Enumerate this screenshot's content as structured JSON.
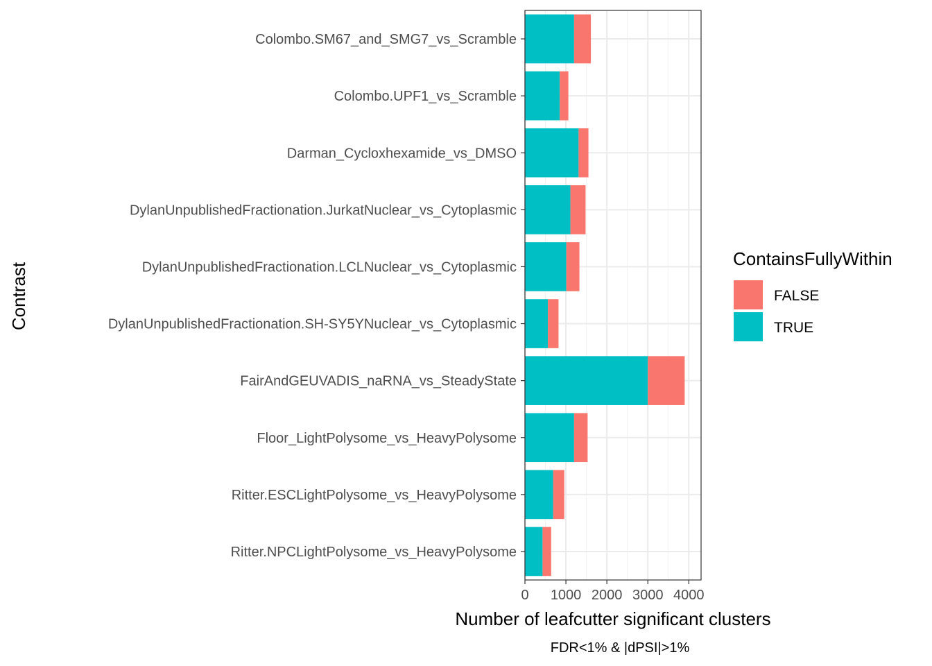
{
  "chart_data": {
    "type": "bar",
    "orientation": "horizontal",
    "stacked": true,
    "categories": [
      "Colombo.SM67_and_SMG7_vs_Scramble",
      "Colombo.UPF1_vs_Scramble",
      "Darman_Cycloxhexamide_vs_DMSO",
      "DylanUnpublishedFractionation.JurkatNuclear_vs_Cytoplasmic",
      "DylanUnpublishedFractionation.LCLNuclear_vs_Cytoplasmic",
      "DylanUnpublishedFractionation.SH-SY5YNuclear_vs_Cytoplasmic",
      "FairAndGEUVADIS_naRNA_vs_SteadyState",
      "Floor_LightPolysome_vs_HeavyPolysome",
      "Ritter.ESCLightPolysome_vs_HeavyPolysome",
      "Ritter.NPCLightPolysome_vs_HeavyPolysome"
    ],
    "series": [
      {
        "name": "TRUE",
        "color": "#00BFC4",
        "values": [
          1200,
          850,
          1310,
          1110,
          1010,
          560,
          3000,
          1200,
          690,
          430
        ]
      },
      {
        "name": "FALSE",
        "color": "#F8766D",
        "values": [
          410,
          210,
          240,
          370,
          320,
          260,
          900,
          330,
          270,
          210
        ]
      }
    ],
    "xlabel": "Number of leafcutter significant clusters",
    "caption": "FDR<1% & |dPSI|>1%",
    "ylabel": "Contrast",
    "xlim": [
      0,
      4300
    ],
    "xticks": [
      0,
      1000,
      2000,
      3000,
      4000
    ],
    "grid": true,
    "legend": {
      "title": "ContainsFullyWithin",
      "position": "right",
      "entries": [
        {
          "label": "FALSE",
          "color": "#F8766D"
        },
        {
          "label": "TRUE",
          "color": "#00BFC4"
        }
      ]
    }
  }
}
